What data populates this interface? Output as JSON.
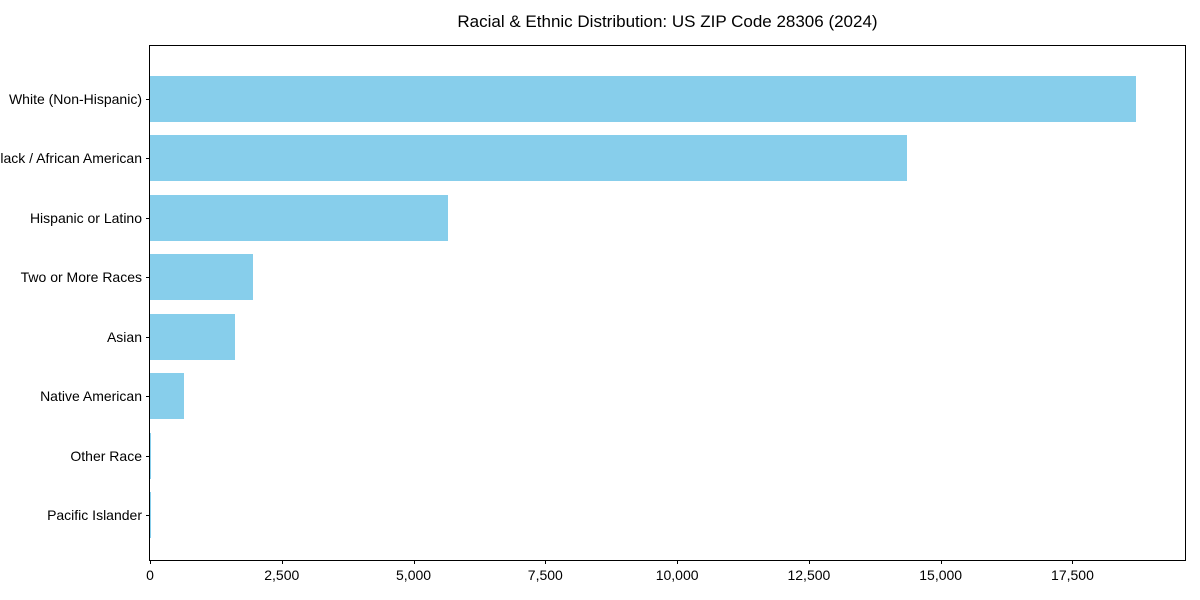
{
  "figure": {
    "background": "#ffffff"
  },
  "chart_data": {
    "type": "bar",
    "orientation": "horizontal",
    "title": "Racial & Ethnic Distribution: US ZIP Code 28306 (2024)",
    "xlabel": "",
    "ylabel": "",
    "categories": [
      "White (Non-Hispanic)",
      "Black / African American",
      "Hispanic or Latino",
      "Two or More Races",
      "Asian",
      "Native American",
      "Other Race",
      "Pacific Islander"
    ],
    "values": [
      18700,
      14360,
      5650,
      1950,
      1610,
      640,
      18,
      8
    ],
    "xlim": [
      0,
      19635
    ],
    "xticks": [
      0,
      2500,
      5000,
      7500,
      10000,
      12500,
      15000,
      17500
    ],
    "xtick_labels": [
      "0",
      "2,500",
      "5,000",
      "7,500",
      "10,000",
      "12,500",
      "15,000",
      "17,500"
    ],
    "bar_color": "#87CEEB",
    "axis_color": "#000000",
    "text_color": "#000000",
    "grid": false,
    "legend_position": "none"
  }
}
